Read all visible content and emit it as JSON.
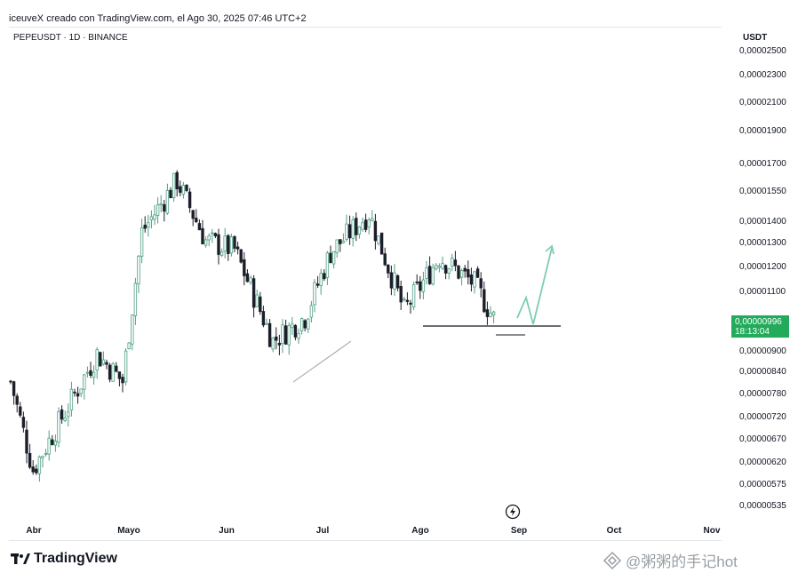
{
  "header": {
    "attribution": "iceuveX creado con TradingView.com, el Ago 30, 2025 07:46 UTC+2"
  },
  "symbol": "PEPEUSDT · 1D · BINANCE",
  "axis_unit": "USDT",
  "current_price": {
    "value": "0,00000996",
    "countdown": "18:13:04",
    "color": "#22ab5a"
  },
  "logo": {
    "text": "TradingView",
    "icon": "tradingview-logo-icon"
  },
  "watermark": {
    "text": "@粥粥的手记hot",
    "icon": "binance-diamond-icon"
  },
  "colors": {
    "up": "#4e9f83",
    "down": "#1c1f2b",
    "projection": "#7ecdb2",
    "support": "#131722"
  },
  "chart_data": {
    "type": "candlestick",
    "title": "PEPEUSDT · 1D · BINANCE",
    "scale": "log",
    "y_ticks": [
      "0,00002500",
      "0,00002300",
      "0,00002100",
      "0,00001900",
      "0,00001700",
      "0,00001550",
      "0,00001400",
      "0,00001300",
      "0,00001200",
      "0,00001100",
      "0,00000900",
      "0,00000840",
      "0,00000780",
      "0,00000720",
      "0,00000670",
      "0,00000620",
      "0,00000575",
      "0,00000535"
    ],
    "x_ticks": [
      "Abr",
      "Mayo",
      "Jun",
      "Jul",
      "Ago",
      "Sep",
      "Oct",
      "Nov"
    ],
    "ylim": [
      5.2e-06,
      2.52e-05
    ],
    "key_points": [
      {
        "date": "Abr 1",
        "close": 8e-06
      },
      {
        "date": "Abr 8",
        "close": 5.9e-06
      },
      {
        "date": "Abr 20",
        "close": 7.5e-06
      },
      {
        "date": "Abr 28",
        "close": 8.8e-06
      },
      {
        "date": "May 6",
        "close": 8e-06
      },
      {
        "date": "May 12",
        "close": 1.34e-05
      },
      {
        "date": "May 23",
        "close": 1.6e-05
      },
      {
        "date": "Jun 1",
        "close": 1.3e-05
      },
      {
        "date": "Jun 10",
        "close": 1.26e-05
      },
      {
        "date": "Jun 22",
        "close": 9.2e-06
      },
      {
        "date": "Jul 2",
        "close": 1e-05
      },
      {
        "date": "Jul 10",
        "close": 1.25e-05
      },
      {
        "date": "Jul 22",
        "close": 1.43e-05
      },
      {
        "date": "Aug 2",
        "close": 1.02e-05
      },
      {
        "date": "Aug 13",
        "close": 1.23e-05
      },
      {
        "date": "Aug 24",
        "close": 1.12e-05
      },
      {
        "date": "Aug 30",
        "close": 9.96e-06
      }
    ],
    "annotations": [
      "support line",
      "rising trendline",
      "projected path"
    ]
  }
}
